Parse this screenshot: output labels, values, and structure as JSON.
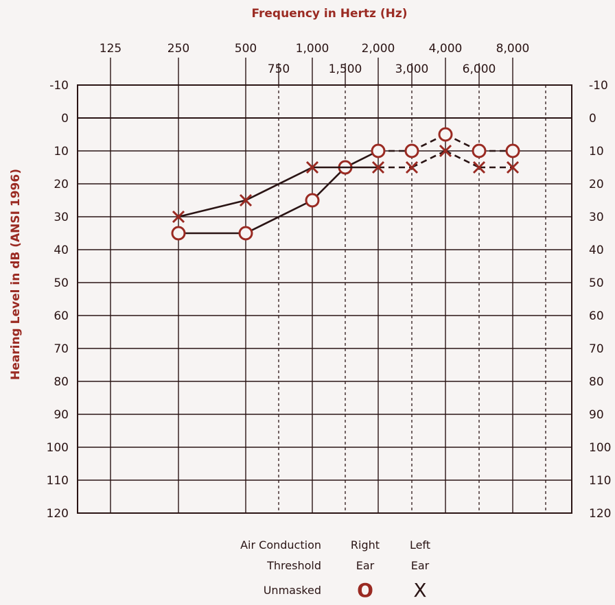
{
  "chart_data": {
    "type": "line",
    "title": "Frequency in Hertz (Hz)",
    "ylabel": "Hearing Level in dB (ANSI 1996)",
    "x_ticks_major": [
      "125",
      "250",
      "500",
      "1,000",
      "2,000",
      "4,000",
      "8,000"
    ],
    "x_ticks_minor": [
      "750",
      "1,500",
      "3,000",
      "6,000"
    ],
    "y_ticks": [
      "-10",
      "0",
      "10",
      "20",
      "30",
      "40",
      "50",
      "60",
      "70",
      "80",
      "90",
      "100",
      "110",
      "120"
    ],
    "ylim": [
      -10,
      120
    ],
    "y_inverted": true,
    "grid": true,
    "colors": {
      "ink": "#9a2a22",
      "line": "#2a1414"
    },
    "series": [
      {
        "name": "Right Ear",
        "marker": "O",
        "points": [
          {
            "x": "250",
            "y": 35
          },
          {
            "x": "500",
            "y": 35
          },
          {
            "x": "1,000",
            "y": 25
          },
          {
            "x": "1,500",
            "y": 15
          },
          {
            "x": "2,000",
            "y": 10
          },
          {
            "x": "3,000",
            "y": 10
          },
          {
            "x": "4,000",
            "y": 5
          },
          {
            "x": "6,000",
            "y": 10
          },
          {
            "x": "8,000",
            "y": 10
          }
        ]
      },
      {
        "name": "Left Ear",
        "marker": "X",
        "points": [
          {
            "x": "250",
            "y": 30
          },
          {
            "x": "500",
            "y": 25
          },
          {
            "x": "1,000",
            "y": 15
          },
          {
            "x": "2,000",
            "y": 15
          },
          {
            "x": "3,000",
            "y": 15
          },
          {
            "x": "4,000",
            "y": 10
          },
          {
            "x": "6,000",
            "y": 15
          },
          {
            "x": "8,000",
            "y": 15
          }
        ]
      }
    ]
  },
  "legend": {
    "row1_label": "Air Conduction",
    "row2_label": "Threshold",
    "row3_label": "Unmasked",
    "right_head1": "Right",
    "right_head2": "Ear",
    "left_head1": "Left",
    "left_head2": "Ear",
    "right_symbol": "O",
    "left_symbol": "X"
  }
}
